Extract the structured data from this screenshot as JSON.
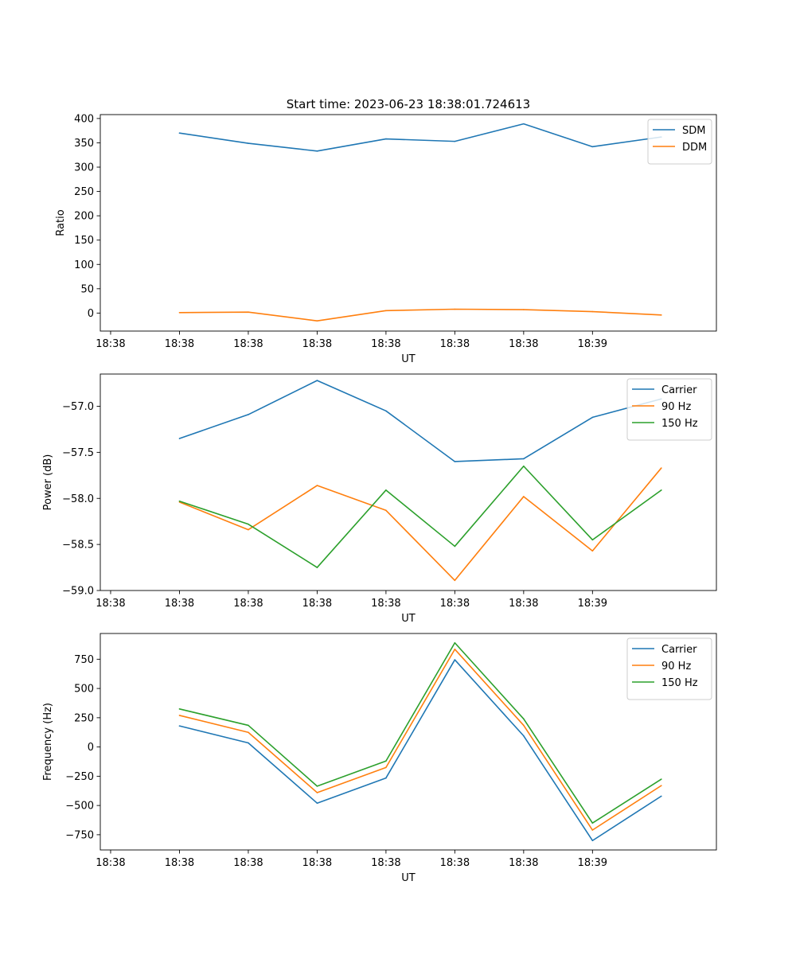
{
  "figure_title": "Start time: 2023-06-23 18:38:01.724613",
  "colors": {
    "blue": "#1f77b4",
    "orange": "#ff7f0e",
    "green": "#2ca02c"
  },
  "chart_data": [
    {
      "type": "line",
      "title": "Start time: 2023-06-23 18:38:01.724613",
      "xlabel": "UT",
      "ylabel": "Ratio",
      "x_tick_labels": [
        "18:38",
        "18:38",
        "18:38",
        "18:38",
        "18:38",
        "18:38",
        "18:38",
        "18:39"
      ],
      "x": [
        1,
        2,
        3,
        4,
        5,
        6,
        7,
        8
      ],
      "xlim": [
        -0.15,
        8.8
      ],
      "ylim": [
        -37,
        408
      ],
      "yticks": [
        0,
        50,
        100,
        150,
        200,
        250,
        300,
        350,
        400
      ],
      "ytick_labels": [
        "0",
        "50",
        "100",
        "150",
        "200",
        "250",
        "300",
        "350",
        "400"
      ],
      "legend_position": "top-right",
      "grid": false,
      "series": [
        {
          "name": "SDM",
          "color": "blue",
          "values": [
            370,
            349,
            333,
            358,
            353,
            389,
            342,
            362
          ]
        },
        {
          "name": "DDM",
          "color": "orange",
          "values": [
            1,
            2,
            -16,
            5,
            8,
            7,
            3,
            -4
          ]
        }
      ]
    },
    {
      "type": "line",
      "xlabel": "UT",
      "ylabel": "Power (dB)",
      "x_tick_labels": [
        "18:38",
        "18:38",
        "18:38",
        "18:38",
        "18:38",
        "18:38",
        "18:38",
        "18:39"
      ],
      "x": [
        1,
        2,
        3,
        4,
        5,
        6,
        7,
        8
      ],
      "xlim": [
        -0.15,
        8.8
      ],
      "ylim": [
        -59.0,
        -56.65
      ],
      "yticks": [
        -59.0,
        -58.5,
        -58.0,
        -57.5,
        -57.0
      ],
      "ytick_labels": [
        "−59.0",
        "−58.5",
        "−58.0",
        "−57.5",
        "−57.0"
      ],
      "legend_position": "top-right",
      "grid": false,
      "series": [
        {
          "name": "Carrier",
          "color": "blue",
          "values": [
            -57.35,
            -57.09,
            -56.72,
            -57.05,
            -57.6,
            -57.57,
            -57.12,
            -56.92
          ]
        },
        {
          "name": "90 Hz",
          "color": "orange",
          "values": [
            -58.04,
            -58.34,
            -57.86,
            -58.13,
            -58.89,
            -57.98,
            -58.57,
            -57.67
          ]
        },
        {
          "name": "150 Hz",
          "color": "green",
          "values": [
            -58.03,
            -58.28,
            -58.75,
            -57.91,
            -58.52,
            -57.65,
            -58.45,
            -57.91
          ]
        }
      ]
    },
    {
      "type": "line",
      "xlabel": "UT",
      "ylabel": "Frequency (Hz)",
      "x_tick_labels": [
        "18:38",
        "18:38",
        "18:38",
        "18:38",
        "18:38",
        "18:38",
        "18:38",
        "18:39"
      ],
      "x": [
        1,
        2,
        3,
        4,
        5,
        6,
        7,
        8
      ],
      "xlim": [
        -0.15,
        8.8
      ],
      "ylim": [
        -880,
        970
      ],
      "yticks": [
        -750,
        -500,
        -250,
        0,
        250,
        500,
        750
      ],
      "ytick_labels": [
        "−750",
        "−500",
        "−250",
        "0",
        "250",
        "500",
        "750"
      ],
      "legend_position": "top-right",
      "grid": false,
      "series": [
        {
          "name": "Carrier",
          "color": "blue",
          "values": [
            180,
            35,
            -480,
            -265,
            745,
            95,
            -800,
            -420
          ]
        },
        {
          "name": "90 Hz",
          "color": "orange",
          "values": [
            270,
            125,
            -390,
            -175,
            835,
            185,
            -710,
            -330
          ]
        },
        {
          "name": "150 Hz",
          "color": "green",
          "values": [
            325,
            185,
            -335,
            -120,
            890,
            240,
            -650,
            -275
          ]
        }
      ]
    }
  ]
}
